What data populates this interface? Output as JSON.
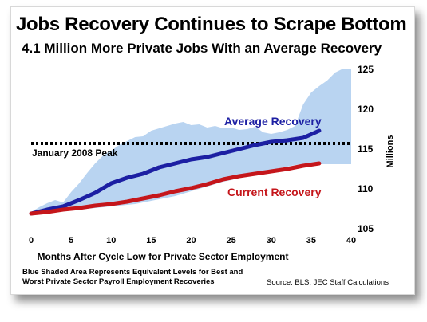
{
  "title": "Jobs Recovery Continues to Scrape Bottom",
  "subtitle": "4.1 Million More Private Jobs With an Average Recovery",
  "footnote": "Blue Shaded Area Represents Equivalent Levels for Best and Worst Private Sector Payroll Employment Recoveries",
  "source": "Source:  BLS, JEC Staff Calculations",
  "colors": {
    "band": "#b9d4f1",
    "average": "#1c1fa3",
    "current": "#c5161b",
    "peak_line": "#000000"
  },
  "chart_data": {
    "type": "line",
    "xlabel": "Months After Cycle Low for Private Sector Employment",
    "ylabel": "Millions",
    "xlim": [
      0,
      40
    ],
    "ylim": [
      105,
      125
    ],
    "x_ticks": [
      0,
      5,
      10,
      15,
      20,
      25,
      30,
      35,
      40
    ],
    "y_ticks": [
      105,
      110,
      115,
      120,
      125
    ],
    "y_axis_side": "right",
    "grid": false,
    "band": {
      "x": [
        0,
        1,
        2,
        3,
        4,
        5,
        6,
        7,
        8,
        9,
        10,
        11,
        12,
        13,
        14,
        15,
        16,
        17,
        18,
        19,
        20,
        21,
        22,
        23,
        24,
        25,
        26,
        27,
        28,
        29,
        30,
        31,
        32,
        33,
        34,
        35,
        36,
        37,
        38,
        39,
        40
      ],
      "upper": [
        107.0,
        107.6,
        108.1,
        108.5,
        108.2,
        109.5,
        110.6,
        111.9,
        113.1,
        114.1,
        114.7,
        115.4,
        115.9,
        116.4,
        116.5,
        117.2,
        117.5,
        117.8,
        118.1,
        118.3,
        117.9,
        118.0,
        117.6,
        117.8,
        117.5,
        117.6,
        117.3,
        117.4,
        117.7,
        117.0,
        116.8,
        117.0,
        117.3,
        117.8,
        120.5,
        122.0,
        122.8,
        123.5,
        124.5,
        125.0,
        125.0
      ],
      "lower": [
        107.0,
        107.0,
        107.1,
        107.1,
        107.2,
        107.3,
        107.3,
        107.4,
        107.5,
        107.6,
        107.7,
        107.8,
        107.9,
        108.0,
        108.2,
        108.4,
        108.6,
        108.8,
        109.0,
        109.3,
        109.6,
        109.9,
        110.2,
        110.5,
        110.8,
        111.0,
        111.3,
        111.5,
        111.8,
        112.1,
        112.3,
        112.5,
        112.7,
        112.9,
        113.0,
        113.0,
        113.0,
        113.0,
        113.0,
        113.0,
        113.0
      ]
    },
    "series": [
      {
        "name": "Average Recovery",
        "x": [
          0,
          2,
          4,
          6,
          8,
          10,
          12,
          14,
          16,
          18,
          20,
          22,
          24,
          26,
          28,
          30,
          32,
          34,
          36
        ],
        "values": [
          106.8,
          107.3,
          107.7,
          108.5,
          109.4,
          110.6,
          111.3,
          111.8,
          112.6,
          113.1,
          113.6,
          113.9,
          114.4,
          114.9,
          115.4,
          115.8,
          116.0,
          116.3,
          117.2
        ]
      },
      {
        "name": "Current Recovery",
        "x": [
          0,
          2,
          4,
          6,
          8,
          10,
          12,
          14,
          16,
          18,
          20,
          22,
          24,
          26,
          28,
          30,
          32,
          34,
          36
        ],
        "values": [
          106.8,
          107.0,
          107.3,
          107.5,
          107.8,
          108.0,
          108.3,
          108.7,
          109.1,
          109.6,
          110.0,
          110.5,
          111.1,
          111.5,
          111.8,
          112.1,
          112.4,
          112.8,
          113.1
        ]
      }
    ],
    "reference_line": {
      "label": "January 2008 Peak",
      "y": 115.6
    },
    "annotations": [
      "Average Recovery",
      "Current Recovery"
    ]
  }
}
